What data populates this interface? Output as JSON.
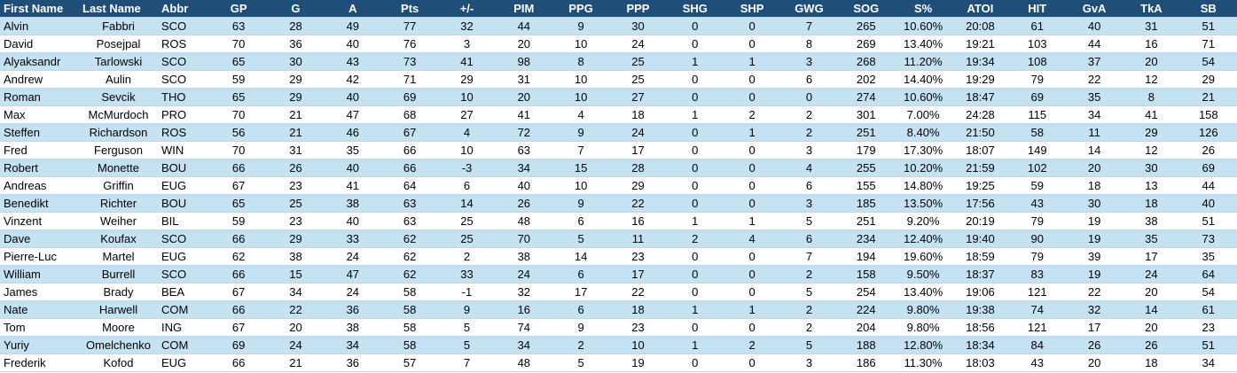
{
  "table": {
    "header": [
      "First Name",
      "Last Name",
      "Abbr",
      "GP",
      "G",
      "A",
      "Pts",
      "+/-",
      "PIM",
      "PPG",
      "PPP",
      "SHG",
      "SHP",
      "GWG",
      "SOG",
      "S%",
      "ATOI",
      "HIT",
      "GvA",
      "TkA",
      "SB"
    ],
    "rows": [
      [
        "Alvin",
        "Fabbri",
        "SCO",
        "63",
        "28",
        "49",
        "77",
        "32",
        "44",
        "9",
        "30",
        "0",
        "0",
        "7",
        "265",
        "10.60%",
        "20:08",
        "61",
        "40",
        "31",
        "51"
      ],
      [
        "David",
        "Posejpal",
        "ROS",
        "70",
        "36",
        "40",
        "76",
        "3",
        "20",
        "10",
        "24",
        "0",
        "0",
        "8",
        "269",
        "13.40%",
        "19:21",
        "103",
        "44",
        "16",
        "71"
      ],
      [
        "Alyaksandr",
        "Tarlowski",
        "SCO",
        "65",
        "30",
        "43",
        "73",
        "41",
        "98",
        "8",
        "25",
        "1",
        "1",
        "3",
        "268",
        "11.20%",
        "19:34",
        "108",
        "37",
        "20",
        "54"
      ],
      [
        "Andrew",
        "Aulin",
        "SCO",
        "59",
        "29",
        "42",
        "71",
        "29",
        "31",
        "10",
        "25",
        "0",
        "0",
        "6",
        "202",
        "14.40%",
        "19:29",
        "79",
        "22",
        "12",
        "29"
      ],
      [
        "Roman",
        "Sevcik",
        "THO",
        "65",
        "29",
        "40",
        "69",
        "10",
        "20",
        "10",
        "27",
        "0",
        "0",
        "0",
        "274",
        "10.60%",
        "18:47",
        "69",
        "35",
        "8",
        "21"
      ],
      [
        "Max",
        "McMurdoch",
        "PRO",
        "70",
        "21",
        "47",
        "68",
        "27",
        "41",
        "4",
        "18",
        "1",
        "2",
        "2",
        "301",
        "7.00%",
        "24:28",
        "115",
        "34",
        "41",
        "158"
      ],
      [
        "Steffen",
        "Richardson",
        "ROS",
        "56",
        "21",
        "46",
        "67",
        "4",
        "72",
        "9",
        "24",
        "0",
        "1",
        "2",
        "251",
        "8.40%",
        "21:50",
        "58",
        "11",
        "29",
        "126"
      ],
      [
        "Fred",
        "Ferguson",
        "WIN",
        "70",
        "31",
        "35",
        "66",
        "10",
        "63",
        "7",
        "17",
        "0",
        "0",
        "3",
        "179",
        "17.30%",
        "18:07",
        "149",
        "14",
        "12",
        "26"
      ],
      [
        "Robert",
        "Monette",
        "BOU",
        "66",
        "26",
        "40",
        "66",
        "-3",
        "34",
        "15",
        "28",
        "0",
        "0",
        "4",
        "255",
        "10.20%",
        "21:59",
        "102",
        "20",
        "30",
        "69"
      ],
      [
        "Andreas",
        "Griffin",
        "EUG",
        "67",
        "23",
        "41",
        "64",
        "6",
        "40",
        "10",
        "29",
        "0",
        "0",
        "6",
        "155",
        "14.80%",
        "19:25",
        "59",
        "18",
        "13",
        "44"
      ],
      [
        "Benedikt",
        "Richter",
        "BOU",
        "65",
        "25",
        "38",
        "63",
        "14",
        "26",
        "9",
        "22",
        "0",
        "0",
        "3",
        "185",
        "13.50%",
        "17:56",
        "43",
        "30",
        "18",
        "40"
      ],
      [
        "Vinzent",
        "Weiher",
        "BIL",
        "59",
        "23",
        "40",
        "63",
        "25",
        "48",
        "6",
        "16",
        "1",
        "1",
        "5",
        "251",
        "9.20%",
        "20:19",
        "79",
        "19",
        "38",
        "51"
      ],
      [
        "Dave",
        "Koufax",
        "SCO",
        "66",
        "29",
        "33",
        "62",
        "25",
        "70",
        "5",
        "11",
        "2",
        "4",
        "6",
        "234",
        "12.40%",
        "19:40",
        "90",
        "19",
        "35",
        "73"
      ],
      [
        "Pierre-Luc",
        "Martel",
        "EUG",
        "62",
        "38",
        "24",
        "62",
        "2",
        "38",
        "14",
        "23",
        "0",
        "0",
        "7",
        "194",
        "19.60%",
        "18:59",
        "79",
        "39",
        "17",
        "35"
      ],
      [
        "William",
        "Burrell",
        "SCO",
        "66",
        "15",
        "47",
        "62",
        "33",
        "24",
        "6",
        "17",
        "0",
        "0",
        "2",
        "158",
        "9.50%",
        "18:37",
        "83",
        "19",
        "24",
        "64"
      ],
      [
        "James",
        "Brady",
        "BEA",
        "67",
        "34",
        "24",
        "58",
        "-1",
        "32",
        "17",
        "22",
        "0",
        "0",
        "5",
        "254",
        "13.40%",
        "19:06",
        "121",
        "22",
        "20",
        "54"
      ],
      [
        "Nate",
        "Harwell",
        "COM",
        "66",
        "22",
        "36",
        "58",
        "9",
        "16",
        "6",
        "18",
        "1",
        "1",
        "2",
        "224",
        "9.80%",
        "19:38",
        "74",
        "32",
        "14",
        "61"
      ],
      [
        "Tom",
        "Moore",
        "ING",
        "67",
        "20",
        "38",
        "58",
        "5",
        "74",
        "9",
        "23",
        "0",
        "0",
        "2",
        "204",
        "9.80%",
        "18:56",
        "121",
        "17",
        "20",
        "23"
      ],
      [
        "Yuriy",
        "Omelchenko",
        "COM",
        "69",
        "24",
        "34",
        "58",
        "5",
        "34",
        "2",
        "10",
        "1",
        "2",
        "5",
        "188",
        "12.80%",
        "18:34",
        "84",
        "26",
        "26",
        "51"
      ],
      [
        "Frederik",
        "Kofod",
        "EUG",
        "66",
        "21",
        "36",
        "57",
        "7",
        "48",
        "5",
        "19",
        "0",
        "0",
        "3",
        "186",
        "11.30%",
        "18:03",
        "43",
        "20",
        "18",
        "34"
      ]
    ]
  }
}
